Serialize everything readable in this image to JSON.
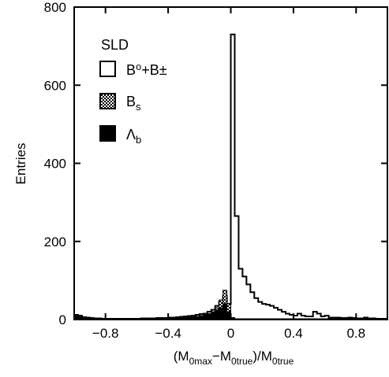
{
  "chart_data": {
    "type": "bar",
    "title": "",
    "xlabel": {
      "main": "(M",
      "sub1": "0max",
      "dash": "−M",
      "sub2": "0true",
      "slash": ")/M",
      "sub3": "0true"
    },
    "ylabel": "Entries",
    "xlim": [
      -1.0,
      1.0
    ],
    "ylim": [
      0,
      800
    ],
    "xticks": [
      -0.8,
      -0.4,
      0,
      0.4,
      0.8
    ],
    "xtick_labels": [
      "−0.8",
      "−0.4",
      "0",
      "0.4",
      "0.8"
    ],
    "yticks": [
      0,
      200,
      400,
      600,
      800
    ],
    "ytick_labels": [
      "0",
      "200",
      "400",
      "600",
      "800"
    ],
    "bin_width": 0.025,
    "grid": false,
    "legend_placement": "top-left",
    "legend_header": "SLD",
    "legend": [
      {
        "label": "B⁰+B±",
        "style": "open"
      },
      {
        "label": "Bs",
        "base": "B",
        "sub": "s",
        "style": "hatched"
      },
      {
        "label": "Λb",
        "base": "Λ",
        "sub": "b",
        "style": "filled"
      }
    ],
    "series": [
      {
        "name": "B⁰+B±",
        "style": "open",
        "bins": [
          [
            -1.0,
            12
          ],
          [
            -0.975,
            10
          ],
          [
            -0.95,
            6
          ],
          [
            -0.925,
            5
          ],
          [
            -0.9,
            4
          ],
          [
            -0.875,
            3
          ],
          [
            -0.85,
            3
          ],
          [
            -0.825,
            2
          ],
          [
            -0.8,
            2
          ],
          [
            -0.775,
            2
          ],
          [
            -0.75,
            2
          ],
          [
            -0.725,
            2
          ],
          [
            -0.7,
            2
          ],
          [
            -0.675,
            2
          ],
          [
            -0.65,
            2
          ],
          [
            -0.625,
            2
          ],
          [
            -0.6,
            2
          ],
          [
            -0.575,
            3
          ],
          [
            -0.55,
            3
          ],
          [
            -0.525,
            3
          ],
          [
            -0.5,
            3
          ],
          [
            -0.475,
            4
          ],
          [
            -0.45,
            4
          ],
          [
            -0.425,
            4
          ],
          [
            -0.4,
            5
          ],
          [
            -0.375,
            5
          ],
          [
            -0.35,
            6
          ],
          [
            -0.325,
            7
          ],
          [
            -0.3,
            8
          ],
          [
            -0.275,
            9
          ],
          [
            -0.25,
            10
          ],
          [
            -0.225,
            12
          ],
          [
            -0.2,
            14
          ],
          [
            -0.175,
            15
          ],
          [
            -0.15,
            20
          ],
          [
            -0.125,
            25
          ],
          [
            -0.1,
            35
          ],
          [
            -0.075,
            45
          ],
          [
            -0.05,
            60
          ],
          [
            -0.025,
            40
          ],
          [
            0.0,
            730
          ],
          [
            0.025,
            265
          ],
          [
            0.05,
            130
          ],
          [
            0.075,
            110
          ],
          [
            0.1,
            90
          ],
          [
            0.125,
            70
          ],
          [
            0.15,
            55
          ],
          [
            0.175,
            45
          ],
          [
            0.2,
            40
          ],
          [
            0.225,
            38
          ],
          [
            0.25,
            35
          ],
          [
            0.275,
            30
          ],
          [
            0.3,
            25
          ],
          [
            0.325,
            20
          ],
          [
            0.35,
            15
          ],
          [
            0.375,
            12
          ],
          [
            0.4,
            10
          ],
          [
            0.425,
            15
          ],
          [
            0.45,
            10
          ],
          [
            0.475,
            8
          ],
          [
            0.5,
            8
          ],
          [
            0.525,
            20
          ],
          [
            0.55,
            15
          ],
          [
            0.575,
            8
          ],
          [
            0.6,
            10
          ],
          [
            0.625,
            5
          ],
          [
            0.65,
            5
          ],
          [
            0.675,
            5
          ],
          [
            0.7,
            4
          ],
          [
            0.725,
            4
          ],
          [
            0.75,
            5
          ],
          [
            0.775,
            4
          ],
          [
            0.8,
            3
          ],
          [
            0.825,
            3
          ],
          [
            0.85,
            5
          ],
          [
            0.875,
            3
          ],
          [
            0.9,
            3
          ],
          [
            0.925,
            2
          ],
          [
            0.95,
            2
          ],
          [
            0.975,
            2
          ]
        ]
      },
      {
        "name": "Bs",
        "style": "hatched",
        "bins": [
          [
            -0.15,
            8
          ],
          [
            -0.125,
            15
          ],
          [
            -0.1,
            30
          ],
          [
            -0.075,
            50
          ],
          [
            -0.05,
            75
          ],
          [
            -0.025,
            40
          ],
          [
            0.0,
            5
          ]
        ]
      },
      {
        "name": "Λb",
        "style": "filled",
        "bins": [
          [
            -1.0,
            12
          ],
          [
            -0.975,
            8
          ],
          [
            -0.95,
            5
          ],
          [
            -0.925,
            4
          ],
          [
            -0.9,
            3
          ],
          [
            -0.875,
            3
          ],
          [
            -0.85,
            2
          ],
          [
            -0.825,
            2
          ],
          [
            -0.8,
            2
          ],
          [
            -0.775,
            2
          ],
          [
            -0.75,
            2
          ],
          [
            -0.725,
            2
          ],
          [
            -0.7,
            2
          ],
          [
            -0.675,
            2
          ],
          [
            -0.65,
            2
          ],
          [
            -0.625,
            2
          ],
          [
            -0.6,
            2
          ],
          [
            -0.575,
            2
          ],
          [
            -0.55,
            2
          ],
          [
            -0.525,
            2
          ],
          [
            -0.5,
            2
          ],
          [
            -0.475,
            2
          ],
          [
            -0.45,
            3
          ],
          [
            -0.425,
            3
          ],
          [
            -0.4,
            3
          ],
          [
            -0.375,
            3
          ],
          [
            -0.35,
            4
          ],
          [
            -0.325,
            5
          ],
          [
            -0.3,
            6
          ],
          [
            -0.275,
            6
          ],
          [
            -0.25,
            7
          ],
          [
            -0.225,
            8
          ],
          [
            -0.2,
            10
          ],
          [
            -0.175,
            12
          ],
          [
            -0.15,
            15
          ],
          [
            -0.125,
            20
          ],
          [
            -0.1,
            25
          ],
          [
            -0.075,
            30
          ],
          [
            -0.05,
            40
          ],
          [
            -0.025,
            20
          ],
          [
            0.0,
            3
          ],
          [
            0.025,
            2
          ],
          [
            0.05,
            2
          ],
          [
            0.075,
            2
          ],
          [
            0.1,
            2
          ],
          [
            0.125,
            2
          ],
          [
            0.15,
            2
          ],
          [
            0.175,
            2
          ],
          [
            0.2,
            2
          ],
          [
            0.225,
            2
          ],
          [
            0.25,
            2
          ],
          [
            0.275,
            2
          ],
          [
            0.3,
            2
          ],
          [
            0.325,
            2
          ],
          [
            0.35,
            2
          ],
          [
            0.375,
            2
          ],
          [
            0.4,
            2
          ],
          [
            0.425,
            2
          ],
          [
            0.45,
            2
          ],
          [
            0.475,
            2
          ],
          [
            0.5,
            2
          ],
          [
            0.525,
            2
          ],
          [
            0.55,
            2
          ],
          [
            0.575,
            2
          ],
          [
            0.6,
            2
          ],
          [
            0.625,
            2
          ],
          [
            0.65,
            2
          ],
          [
            0.675,
            2
          ],
          [
            0.7,
            2
          ],
          [
            0.725,
            2
          ],
          [
            0.75,
            2
          ],
          [
            0.775,
            2
          ],
          [
            0.8,
            2
          ],
          [
            0.825,
            2
          ],
          [
            0.85,
            2
          ],
          [
            0.875,
            2
          ],
          [
            0.9,
            2
          ],
          [
            0.925,
            2
          ],
          [
            0.95,
            2
          ],
          [
            0.975,
            2
          ]
        ]
      }
    ]
  }
}
